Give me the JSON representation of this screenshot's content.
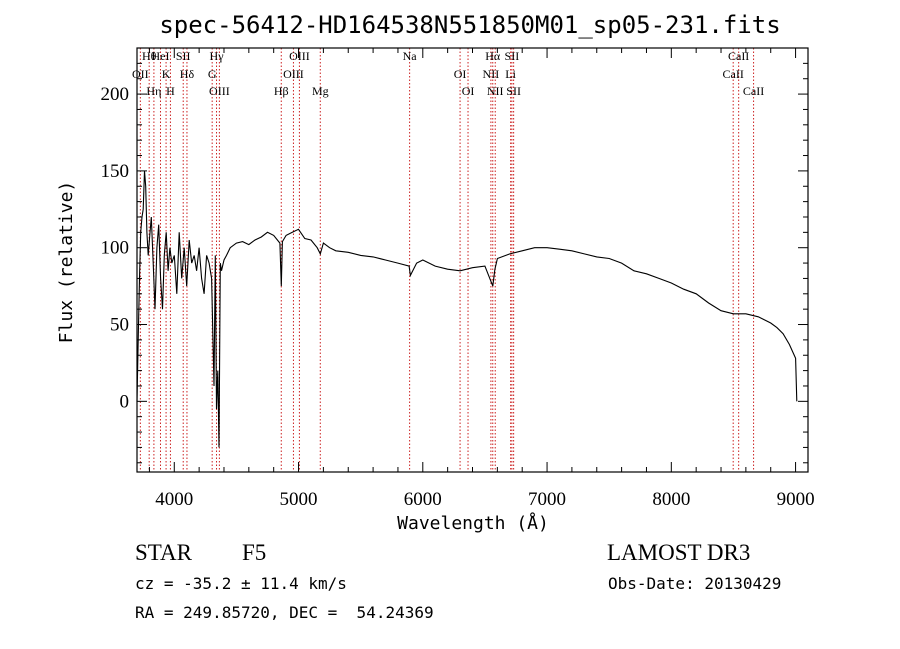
{
  "chart_data": {
    "type": "line",
    "title": "spec-56412-HD164538N551850M01_sp05-231.fits",
    "xlabel": "Wavelength (Å)",
    "ylabel": "Flux (relative)",
    "xlim": [
      3700,
      9100
    ],
    "ylim": [
      -46,
      230
    ],
    "xticks": [
      4000,
      5000,
      6000,
      7000,
      8000,
      9000
    ],
    "yticks": [
      0,
      50,
      100,
      150,
      200
    ],
    "line_color": "#000000",
    "marker_color": "#cc2222",
    "spectrum": {
      "x": [
        3700,
        3710,
        3720,
        3730,
        3740,
        3750,
        3760,
        3770,
        3780,
        3790,
        3800,
        3815,
        3830,
        3845,
        3860,
        3875,
        3890,
        3905,
        3920,
        3935,
        3950,
        3965,
        3980,
        4000,
        4020,
        4040,
        4060,
        4080,
        4100,
        4120,
        4140,
        4160,
        4180,
        4200,
        4220,
        4240,
        4260,
        4280,
        4300,
        4320,
        4330,
        4340,
        4350,
        4360,
        4370,
        4380,
        4400,
        4420,
        4450,
        4500,
        4550,
        4600,
        4650,
        4700,
        4750,
        4800,
        4850,
        4861,
        4870,
        4900,
        4950,
        5000,
        5050,
        5100,
        5150,
        5175,
        5200,
        5250,
        5300,
        5400,
        5500,
        5600,
        5700,
        5800,
        5890,
        5900,
        5950,
        6000,
        6100,
        6200,
        6300,
        6400,
        6500,
        6563,
        6580,
        6600,
        6700,
        6800,
        6900,
        7000,
        7100,
        7200,
        7300,
        7400,
        7500,
        7600,
        7700,
        7800,
        7900,
        8000,
        8100,
        8200,
        8300,
        8400,
        8500,
        8600,
        8700,
        8800,
        8850,
        8900,
        8950,
        9000,
        9010
      ],
      "y": [
        0,
        40,
        80,
        110,
        120,
        125,
        150,
        140,
        110,
        95,
        105,
        120,
        90,
        60,
        100,
        115,
        80,
        60,
        95,
        110,
        85,
        100,
        90,
        95,
        70,
        110,
        80,
        100,
        75,
        105,
        90,
        95,
        85,
        100,
        80,
        70,
        95,
        90,
        80,
        10,
        95,
        -5,
        20,
        -30,
        90,
        85,
        92,
        95,
        100,
        103,
        104,
        102,
        105,
        107,
        110,
        108,
        103,
        75,
        104,
        108,
        110,
        112,
        106,
        105,
        100,
        96,
        103,
        100,
        98,
        97,
        95,
        94,
        92,
        90,
        88,
        82,
        90,
        92,
        88,
        86,
        85,
        87,
        88,
        75,
        86,
        93,
        96,
        98,
        100,
        100,
        99,
        98,
        96,
        94,
        93,
        90,
        85,
        83,
        80,
        77,
        73,
        70,
        64,
        59,
        57,
        57,
        55,
        51,
        48,
        44,
        37,
        28,
        0
      ]
    },
    "line_markers": [
      {
        "label": "Hθ",
        "wavelength": 3798
      },
      {
        "label": "OII",
        "wavelength": 3727
      },
      {
        "label": "Hη",
        "wavelength": 3836
      },
      {
        "label": "HeI",
        "wavelength": 3889
      },
      {
        "label": "K",
        "wavelength": 3934
      },
      {
        "label": "H",
        "wavelength": 3969
      },
      {
        "label": "SII",
        "wavelength": 4072
      },
      {
        "label": "Hδ",
        "wavelength": 4102
      },
      {
        "label": "OIII",
        "wavelength": 4363
      },
      {
        "label": "Hγ",
        "wavelength": 4340
      },
      {
        "label": "G",
        "wavelength": 4305
      },
      {
        "label": "Hβ",
        "wavelength": 4861
      },
      {
        "label": "OIII",
        "wavelength": 5007
      },
      {
        "label": "OIII",
        "wavelength": 4959
      },
      {
        "label": "Mg",
        "wavelength": 5175
      },
      {
        "label": "Na",
        "wavelength": 5894
      },
      {
        "label": "OI",
        "wavelength": 6300
      },
      {
        "label": "OI",
        "wavelength": 6364
      },
      {
        "label": "Hα",
        "wavelength": 6563
      },
      {
        "label": "NII",
        "wavelength": 6548
      },
      {
        "label": "NII",
        "wavelength": 6583
      },
      {
        "label": "SII",
        "wavelength": 6717
      },
      {
        "label": "Li",
        "wavelength": 6707
      },
      {
        "label": "SII",
        "wavelength": 6731
      },
      {
        "label": "CaII",
        "wavelength": 8542
      },
      {
        "label": "CaII",
        "wavelength": 8498
      },
      {
        "label": "CaII",
        "wavelength": 8662
      }
    ]
  },
  "info": {
    "object_type": "STAR",
    "subclass": "F5",
    "survey": "LAMOST DR3",
    "cz": "cz = -35.2 ± 11.4 km/s",
    "obs_date": "Obs-Date: 20130429",
    "coords": "RA = 249.85720, DEC =  54.24369"
  }
}
